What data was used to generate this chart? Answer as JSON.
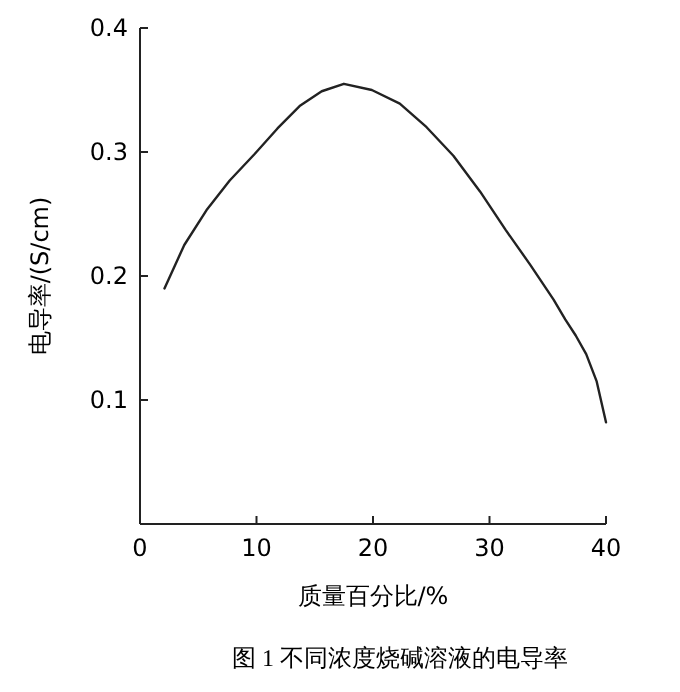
{
  "chart_data": {
    "type": "line",
    "xlabel": "质量百分比/%",
    "ylabel": "电导率/(S/cm)",
    "annotations": [
      "图 1  不同浓度烧碱溶液的电导率"
    ],
    "x": [
      2.1,
      3.8,
      5.7,
      7.7,
      9.8,
      11.8,
      13.7,
      15.6,
      17.5,
      19.9,
      22.3,
      24.6,
      26.9,
      29.2,
      31.4,
      33.5,
      35.5,
      36.5,
      37.4,
      38.3,
      39.2,
      40
    ],
    "series": [
      {
        "color": "#222222",
        "values": [
          0.19,
          0.225,
          0.253,
          0.277,
          0.298,
          0.319,
          0.337,
          0.349,
          0.355,
          0.35,
          0.339,
          0.32,
          0.297,
          0.268,
          0.237,
          0.209,
          0.181,
          0.165,
          0.152,
          0.137,
          0.115,
          0.082
        ]
      }
    ],
    "xlim": [
      0,
      40
    ],
    "ylim": [
      0,
      0.4
    ],
    "xticks": [
      0,
      10,
      20,
      30,
      40
    ],
    "yticks": [
      0.1,
      0.2,
      0.3,
      0.4
    ],
    "grid": false,
    "line_style": "solid"
  }
}
